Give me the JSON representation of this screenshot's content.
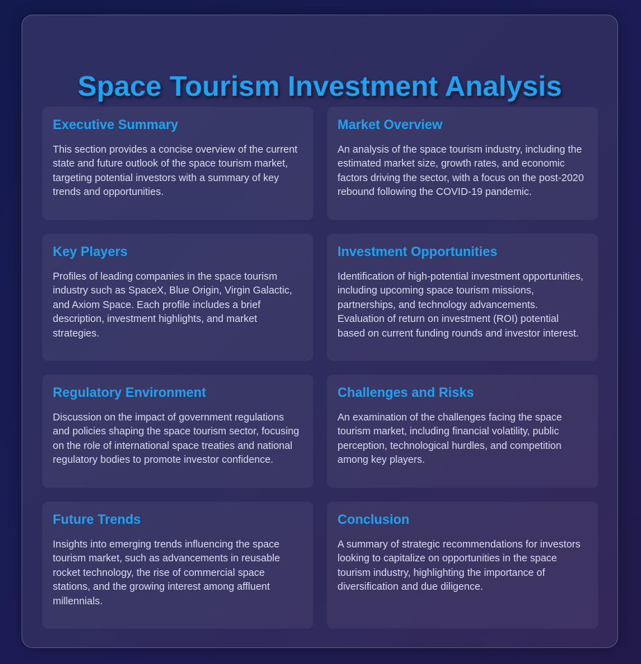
{
  "page": {
    "title": "Space Tourism Investment Analysis"
  },
  "sections": [
    {
      "title": "Executive Summary",
      "text": "This section provides a concise overview of the current state and future outlook of the space tourism market, targeting potential investors with a summary of key trends and opportunities."
    },
    {
      "title": "Market Overview",
      "text": "An analysis of the space tourism industry, including the estimated market size, growth rates, and economic factors driving the sector, with a focus on the post-2020 rebound following the COVID-19 pandemic."
    },
    {
      "title": "Key Players",
      "text": "Profiles of leading companies in the space tourism industry such as SpaceX, Blue Origin, Virgin Galactic, and Axiom Space. Each profile includes a brief description, investment highlights, and market strategies."
    },
    {
      "title": "Investment Opportunities",
      "text": "Identification of high-potential investment opportunities, including upcoming space tourism missions, partnerships, and technology advancements. Evaluation of return on investment (ROI) potential based on current funding rounds and investor interest."
    },
    {
      "title": "Regulatory Environment",
      "text": "Discussion on the impact of government regulations and policies shaping the space tourism sector, focusing on the role of international space treaties and national regulatory bodies to promote investor confidence."
    },
    {
      "title": "Challenges and Risks",
      "text": "An examination of the challenges facing the space tourism market, including financial volatility, public perception, technological hurdles, and competition among key players."
    },
    {
      "title": "Future Trends",
      "text": "Insights into emerging trends influencing the space tourism market, such as advancements in reusable rocket technology, the rise of commercial space stations, and the growing interest among affluent millennials."
    },
    {
      "title": "Conclusion",
      "text": "A summary of strategic recommendations for investors looking to capitalize on opportunities in the space tourism industry, highlighting the importance of diversification and due diligence."
    }
  ],
  "colors": {
    "accent": "#1fa2f1",
    "body_text": "#dadcf0",
    "background": "#1b1c55"
  }
}
